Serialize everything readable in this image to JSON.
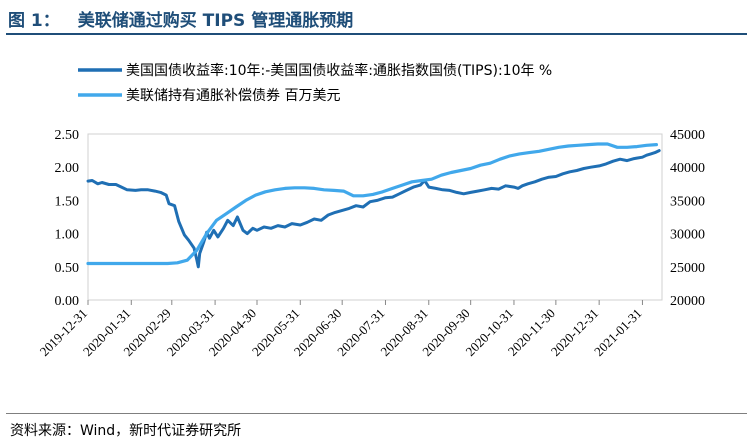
{
  "figure": {
    "number": "图 1：",
    "title": "美联储通过购买 TIPS 管理通胀预期"
  },
  "source": "资料来源：Wind，新时代证券研究所",
  "chart_data": {
    "type": "line",
    "legend_position": "top-left",
    "grid": false,
    "x_ticks": [
      "2019-12-31",
      "2020-01-31",
      "2020-02-29",
      "2020-03-31",
      "2020-04-30",
      "2020-05-31",
      "2020-06-30",
      "2020-07-31",
      "2020-08-31",
      "2020-09-30",
      "2020-10-31",
      "2020-11-30",
      "2020-12-31",
      "2021-01-31"
    ],
    "x_range": [
      "2019-12-31",
      "2021-02-14"
    ],
    "y_left": {
      "lim": [
        0.0,
        2.5
      ],
      "ticks": [
        "0.00",
        "0.50",
        "1.00",
        "1.50",
        "2.00",
        "2.50"
      ]
    },
    "y_right": {
      "lim": [
        20000,
        45000
      ],
      "ticks": [
        "20000",
        "25000",
        "30000",
        "35000",
        "40000",
        "45000"
      ]
    },
    "series": [
      {
        "name": "美国国债收益率:10年:-美国国债收益率:通胀指数国债(TIPS):10年 %",
        "axis": "left",
        "color": "#1f6fb4",
        "points": [
          [
            "2019-12-31",
            1.79
          ],
          [
            "2020-01-03",
            1.8
          ],
          [
            "2020-01-07",
            1.75
          ],
          [
            "2020-01-10",
            1.77
          ],
          [
            "2020-01-15",
            1.74
          ],
          [
            "2020-01-20",
            1.74
          ],
          [
            "2020-01-24",
            1.7
          ],
          [
            "2020-01-28",
            1.66
          ],
          [
            "2020-02-03",
            1.65
          ],
          [
            "2020-02-07",
            1.66
          ],
          [
            "2020-02-12",
            1.66
          ],
          [
            "2020-02-17",
            1.64
          ],
          [
            "2020-02-21",
            1.62
          ],
          [
            "2020-02-25",
            1.58
          ],
          [
            "2020-02-27",
            1.45
          ],
          [
            "2020-03-02",
            1.42
          ],
          [
            "2020-03-05",
            1.18
          ],
          [
            "2020-03-09",
            0.98
          ],
          [
            "2020-03-12",
            0.9
          ],
          [
            "2020-03-16",
            0.78
          ],
          [
            "2020-03-18",
            0.6
          ],
          [
            "2020-03-19",
            0.5
          ],
          [
            "2020-03-20",
            0.7
          ],
          [
            "2020-03-23",
            0.88
          ],
          [
            "2020-03-25",
            1.02
          ],
          [
            "2020-03-27",
            0.93
          ],
          [
            "2020-03-30",
            1.05
          ],
          [
            "2020-04-02",
            0.95
          ],
          [
            "2020-04-06",
            1.08
          ],
          [
            "2020-04-09",
            1.2
          ],
          [
            "2020-04-13",
            1.12
          ],
          [
            "2020-04-16",
            1.25
          ],
          [
            "2020-04-20",
            1.05
          ],
          [
            "2020-04-23",
            1.0
          ],
          [
            "2020-04-27",
            1.08
          ],
          [
            "2020-04-30",
            1.05
          ],
          [
            "2020-05-05",
            1.1
          ],
          [
            "2020-05-10",
            1.08
          ],
          [
            "2020-05-15",
            1.12
          ],
          [
            "2020-05-20",
            1.1
          ],
          [
            "2020-05-25",
            1.15
          ],
          [
            "2020-05-31",
            1.13
          ],
          [
            "2020-06-05",
            1.17
          ],
          [
            "2020-06-10",
            1.22
          ],
          [
            "2020-06-15",
            1.2
          ],
          [
            "2020-06-20",
            1.28
          ],
          [
            "2020-06-25",
            1.32
          ],
          [
            "2020-06-30",
            1.35
          ],
          [
            "2020-07-05",
            1.38
          ],
          [
            "2020-07-10",
            1.42
          ],
          [
            "2020-07-15",
            1.4
          ],
          [
            "2020-07-20",
            1.48
          ],
          [
            "2020-07-25",
            1.5
          ],
          [
            "2020-07-31",
            1.54
          ],
          [
            "2020-08-05",
            1.55
          ],
          [
            "2020-08-10",
            1.6
          ],
          [
            "2020-08-15",
            1.65
          ],
          [
            "2020-08-20",
            1.7
          ],
          [
            "2020-08-25",
            1.73
          ],
          [
            "2020-08-28",
            1.8
          ],
          [
            "2020-08-31",
            1.7
          ],
          [
            "2020-09-05",
            1.68
          ],
          [
            "2020-09-10",
            1.66
          ],
          [
            "2020-09-15",
            1.65
          ],
          [
            "2020-09-20",
            1.62
          ],
          [
            "2020-09-25",
            1.6
          ],
          [
            "2020-09-30",
            1.62
          ],
          [
            "2020-10-05",
            1.64
          ],
          [
            "2020-10-10",
            1.66
          ],
          [
            "2020-10-15",
            1.68
          ],
          [
            "2020-10-20",
            1.67
          ],
          [
            "2020-10-25",
            1.72
          ],
          [
            "2020-10-31",
            1.7
          ],
          [
            "2020-11-03",
            1.68
          ],
          [
            "2020-11-06",
            1.72
          ],
          [
            "2020-11-10",
            1.75
          ],
          [
            "2020-11-15",
            1.78
          ],
          [
            "2020-11-20",
            1.82
          ],
          [
            "2020-11-25",
            1.85
          ],
          [
            "2020-11-30",
            1.86
          ],
          [
            "2020-12-05",
            1.9
          ],
          [
            "2020-12-10",
            1.93
          ],
          [
            "2020-12-15",
            1.95
          ],
          [
            "2020-12-20",
            1.98
          ],
          [
            "2020-12-25",
            2.0
          ],
          [
            "2020-12-31",
            2.02
          ],
          [
            "2021-01-05",
            2.05
          ],
          [
            "2021-01-10",
            2.09
          ],
          [
            "2021-01-15",
            2.12
          ],
          [
            "2021-01-20",
            2.1
          ],
          [
            "2021-01-25",
            2.13
          ],
          [
            "2021-01-31",
            2.15
          ],
          [
            "2021-02-03",
            2.18
          ],
          [
            "2021-02-06",
            2.2
          ],
          [
            "2021-02-09",
            2.22
          ],
          [
            "2021-02-12",
            2.25
          ]
        ]
      },
      {
        "name": "美联储持有通胀补偿债券 百万美元",
        "axis": "right",
        "color": "#41a8eb",
        "points": [
          [
            "2019-12-31",
            25500
          ],
          [
            "2020-01-08",
            25500
          ],
          [
            "2020-01-15",
            25500
          ],
          [
            "2020-01-22",
            25500
          ],
          [
            "2020-01-29",
            25500
          ],
          [
            "2020-02-05",
            25500
          ],
          [
            "2020-02-12",
            25500
          ],
          [
            "2020-02-19",
            25500
          ],
          [
            "2020-02-26",
            25500
          ],
          [
            "2020-03-04",
            25600
          ],
          [
            "2020-03-11",
            26000
          ],
          [
            "2020-03-18",
            27500
          ],
          [
            "2020-03-25",
            30000
          ],
          [
            "2020-04-01",
            32000
          ],
          [
            "2020-04-08",
            33000
          ],
          [
            "2020-04-15",
            34000
          ],
          [
            "2020-04-22",
            35000
          ],
          [
            "2020-04-29",
            35800
          ],
          [
            "2020-05-06",
            36300
          ],
          [
            "2020-05-13",
            36600
          ],
          [
            "2020-05-20",
            36800
          ],
          [
            "2020-05-27",
            36900
          ],
          [
            "2020-06-03",
            36900
          ],
          [
            "2020-06-10",
            36800
          ],
          [
            "2020-06-17",
            36600
          ],
          [
            "2020-06-24",
            36500
          ],
          [
            "2020-07-01",
            36400
          ],
          [
            "2020-07-08",
            35700
          ],
          [
            "2020-07-15",
            35700
          ],
          [
            "2020-07-22",
            35900
          ],
          [
            "2020-07-29",
            36300
          ],
          [
            "2020-08-05",
            36800
          ],
          [
            "2020-08-12",
            37300
          ],
          [
            "2020-08-19",
            37800
          ],
          [
            "2020-08-26",
            38000
          ],
          [
            "2020-09-02",
            38200
          ],
          [
            "2020-09-09",
            38800
          ],
          [
            "2020-09-16",
            39200
          ],
          [
            "2020-09-23",
            39500
          ],
          [
            "2020-09-30",
            39800
          ],
          [
            "2020-10-07",
            40300
          ],
          [
            "2020-10-14",
            40600
          ],
          [
            "2020-10-21",
            41200
          ],
          [
            "2020-10-28",
            41700
          ],
          [
            "2020-11-04",
            42000
          ],
          [
            "2020-11-11",
            42200
          ],
          [
            "2020-11-18",
            42400
          ],
          [
            "2020-11-25",
            42700
          ],
          [
            "2020-12-02",
            43000
          ],
          [
            "2020-12-09",
            43200
          ],
          [
            "2020-12-16",
            43300
          ],
          [
            "2020-12-23",
            43400
          ],
          [
            "2020-12-30",
            43500
          ],
          [
            "2021-01-06",
            43500
          ],
          [
            "2021-01-13",
            43000
          ],
          [
            "2021-01-20",
            43000
          ],
          [
            "2021-01-27",
            43100
          ],
          [
            "2021-02-03",
            43300
          ],
          [
            "2021-02-10",
            43400
          ]
        ]
      }
    ]
  }
}
